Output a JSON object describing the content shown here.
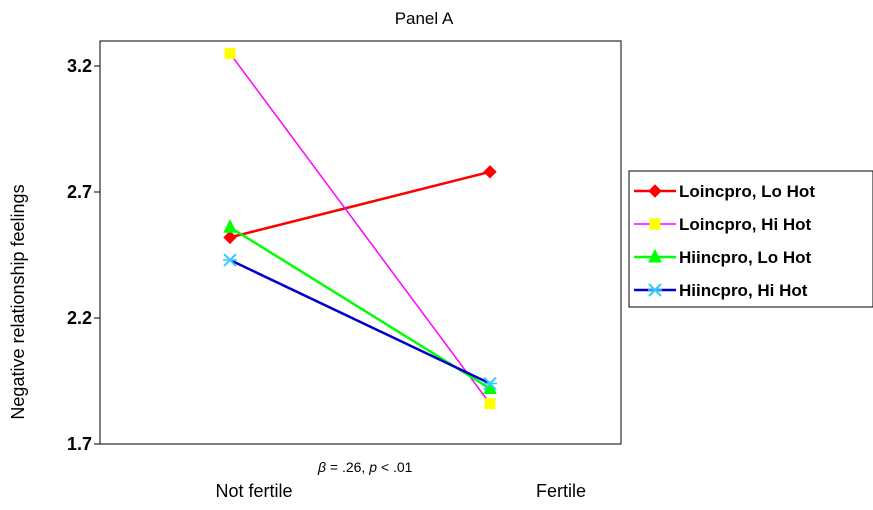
{
  "chart_data": {
    "type": "line",
    "title": "Panel A",
    "ylabel": "Negative relationship feelings",
    "xlabel": "",
    "categories": [
      "Not fertile",
      "Fertile"
    ],
    "ylim": [
      1.7,
      3.3
    ],
    "yticks": [
      1.7,
      2.2,
      2.7,
      3.2
    ],
    "ytick_labels": [
      "1.7",
      "2.2",
      "2.7",
      "3.2"
    ],
    "grid": false,
    "legend_position": "right",
    "annotation": {
      "beta_symbol": "β",
      "beta_value": " = .26, ",
      "p_symbol": "p",
      "p_value": " < .01"
    },
    "series": [
      {
        "name": "Loincpro, Lo Hot",
        "values": [
          2.52,
          2.78
        ],
        "color": "#ff0000",
        "marker": "diamond"
      },
      {
        "name": "Loincpro, Hi Hot",
        "values": [
          3.25,
          1.86
        ],
        "color": "#ff00ff",
        "marker": "square",
        "marker_color": "#ffff00"
      },
      {
        "name": "Hiincpro, Lo Hot",
        "values": [
          2.56,
          1.92
        ],
        "color": "#00ff00",
        "marker": "triangle"
      },
      {
        "name": "Hiincpro, Hi Hot",
        "values": [
          2.43,
          1.94
        ],
        "color": "#0000cc",
        "marker": "star",
        "marker_color": "#33ccff"
      }
    ]
  }
}
